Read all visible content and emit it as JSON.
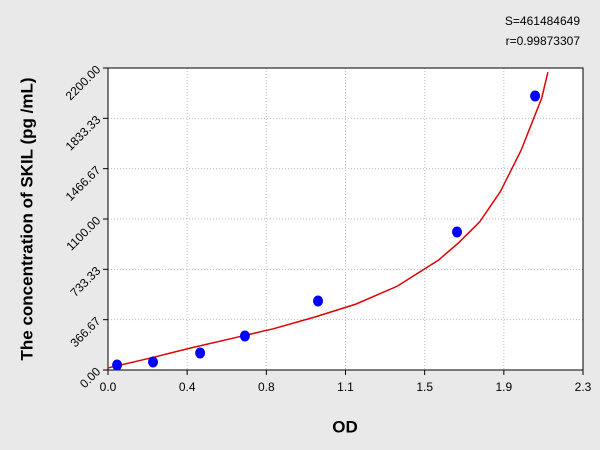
{
  "chart_data": {
    "type": "scatter",
    "annotations": [
      "S=461484649",
      "r=0.99873307"
    ],
    "x_label": "OD",
    "y_label": "The concentration of SKIL (pg /mL)",
    "xlim": [
      0,
      2.3
    ],
    "ylim": [
      0,
      2200
    ],
    "xticks": [
      {
        "value": 0,
        "label": "0.0"
      },
      {
        "value": 0.3833,
        "label": "0.4"
      },
      {
        "value": 0.7667,
        "label": "0.8"
      },
      {
        "value": 1.15,
        "label": "1.1"
      },
      {
        "value": 1.5333,
        "label": "1.5"
      },
      {
        "value": 1.9167,
        "label": "1.9"
      },
      {
        "value": 2.3,
        "label": "2.3"
      }
    ],
    "yticks": [
      {
        "value": 0,
        "label": "0.00"
      },
      {
        "value": 366.67,
        "label": "366.67"
      },
      {
        "value": 733.33,
        "label": "733.33"
      },
      {
        "value": 1100,
        "label": "1100.00"
      },
      {
        "value": 1466.67,
        "label": "1466.67"
      },
      {
        "value": 1833.33,
        "label": "1833.33"
      },
      {
        "value": 2200,
        "label": "2200.00"
      }
    ],
    "grid": true,
    "series": [
      {
        "kind": "points",
        "color": "#0000ff",
        "x": [
          0.044,
          0.218,
          0.446,
          0.663,
          1.017,
          1.69,
          2.068
        ],
        "values": [
          36,
          58,
          124,
          248,
          503,
          1005,
          1996
        ]
      },
      {
        "kind": "curve",
        "color": "#e00000",
        "x": [
          0,
          0.2,
          0.4,
          0.6,
          0.8,
          1.0,
          1.2,
          1.4,
          1.6,
          1.7,
          1.8,
          1.9,
          2.0,
          2.05,
          2.1,
          2.13
        ],
        "values": [
          15,
          85,
          160,
          230,
          300,
          385,
          480,
          610,
          800,
          930,
          1080,
          1300,
          1600,
          1790,
          1980,
          2170
        ]
      }
    ]
  }
}
